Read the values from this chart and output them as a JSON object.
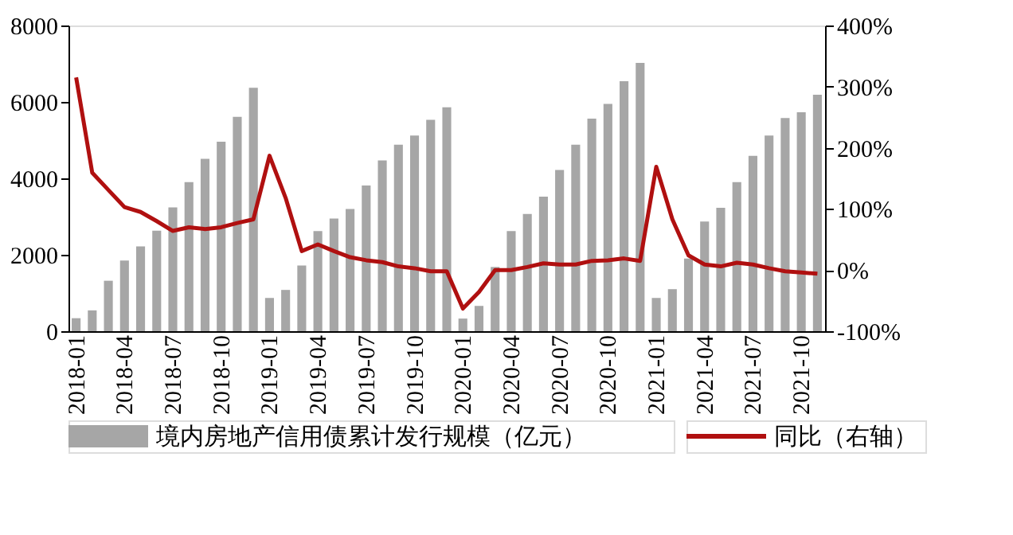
{
  "chart_data": {
    "type": "bar",
    "categories": [
      "2018-01",
      null,
      null,
      "2018-04",
      null,
      null,
      "2018-07",
      null,
      null,
      "2018-10",
      null,
      null,
      "2019-01",
      null,
      null,
      "2019-04",
      null,
      null,
      "2019-07",
      null,
      null,
      "2019-10",
      null,
      null,
      "2020-01",
      null,
      null,
      "2020-04",
      null,
      null,
      "2020-07",
      null,
      null,
      "2020-10",
      null,
      null,
      "2021-01",
      null,
      null,
      "2021-04",
      null,
      null,
      "2021-07",
      null,
      null,
      "2021-10",
      null
    ],
    "series": [
      {
        "name": "境内房地产信用债累计发行规模（亿元）",
        "color": "#a6a6a6",
        "values": [
          340,
          545,
          1320,
          1850,
          2220,
          2630,
          3240,
          3900,
          4510,
          4960,
          5610,
          6370,
          870,
          1080,
          1720,
          2620,
          2950,
          3200,
          3810,
          4470,
          4880,
          5120,
          5530,
          5860,
          330,
          660,
          1680,
          2620,
          3070,
          3520,
          4220,
          4880,
          5560,
          5950,
          6540,
          7020,
          870,
          1100,
          1900,
          2870,
          3230,
          3900,
          4590,
          5120,
          5580,
          5730,
          6190
        ]
      },
      {
        "name": "同比（右轴）",
        "type": "line",
        "axis": "y2",
        "color": "#b01010",
        "values": [
          315,
          159,
          131,
          103,
          95,
          80,
          64,
          70,
          67,
          70,
          77,
          83,
          187,
          118,
          31,
          42,
          31,
          21,
          16,
          13,
          6,
          3,
          -2,
          -2,
          -63,
          -36,
          0,
          0,
          5,
          11,
          9,
          9,
          15,
          16,
          19,
          15,
          169,
          83,
          24,
          9,
          6,
          12,
          9,
          3,
          -2,
          -4,
          -6
        ]
      }
    ],
    "ylim": [
      0,
      8000
    ],
    "yticks": [
      0,
      2000,
      4000,
      6000,
      8000
    ],
    "y2lim": [
      -100,
      400
    ],
    "y2ticks": [
      {
        "value": -100,
        "label": "-100%"
      },
      {
        "value": 0,
        "label": "0%"
      },
      {
        "value": 100,
        "label": "100%"
      },
      {
        "value": 200,
        "label": "200%"
      },
      {
        "value": 300,
        "label": "300%"
      },
      {
        "value": 400,
        "label": "400%"
      }
    ],
    "grid": false,
    "legend": "bottom",
    "line_style": "solid",
    "marker": "none"
  }
}
